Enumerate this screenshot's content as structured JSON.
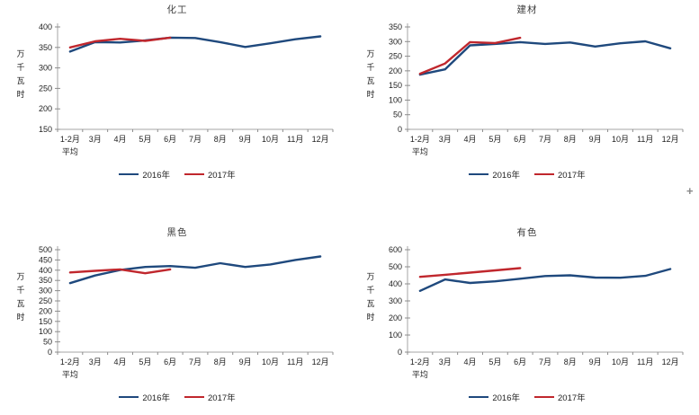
{
  "app": {
    "background": "#ffffff",
    "cursor_glyph": "+"
  },
  "styles": {
    "series_2016_color": "#1F497D",
    "series_2017_color": "#C0272D",
    "axis_color": "#a6a6a6",
    "tick_color": "#8c8c8c",
    "text_color": "#1f1f1f"
  },
  "chart_data": [
    {
      "type": "line",
      "title": "化工",
      "ylabel": "万千瓦时",
      "xlabel": "",
      "ylim": [
        150,
        400
      ],
      "ytick_step": 50,
      "grid": false,
      "legend_position": "bottom",
      "categories": [
        "1-2月\n平均",
        "3月",
        "4月",
        "5月",
        "6月",
        "7月",
        "8月",
        "9月",
        "10月",
        "11月",
        "12月"
      ],
      "series": [
        {
          "name": "2016年",
          "color": "#1F497D",
          "values": [
            340,
            363,
            362,
            367,
            374,
            373,
            363,
            351,
            360,
            370,
            377
          ]
        },
        {
          "name": "2017年",
          "color": "#C0272D",
          "values": [
            350,
            365,
            371,
            366,
            374
          ]
        }
      ]
    },
    {
      "type": "line",
      "title": "建材",
      "ylabel": "万千瓦时",
      "xlabel": "",
      "ylim": [
        0,
        350
      ],
      "ytick_step": 50,
      "grid": false,
      "legend_position": "bottom",
      "categories": [
        "1-2月\n平均",
        "3月",
        "4月",
        "5月",
        "6月",
        "7月",
        "8月",
        "9月",
        "10月",
        "11月",
        "12月"
      ],
      "series": [
        {
          "name": "2016年",
          "color": "#1F497D",
          "values": [
            187,
            205,
            287,
            292,
            298,
            292,
            297,
            283,
            294,
            301,
            277
          ]
        },
        {
          "name": "2017年",
          "color": "#C0272D",
          "values": [
            190,
            225,
            298,
            295,
            313
          ]
        }
      ]
    },
    {
      "type": "line",
      "title": "黑色",
      "ylabel": "万千瓦时",
      "xlabel": "",
      "ylim": [
        0,
        500
      ],
      "ytick_step": 50,
      "grid": false,
      "legend_position": "bottom",
      "categories": [
        "1-2月\n平均",
        "3月",
        "4月",
        "5月",
        "6月",
        "7月",
        "8月",
        "9月",
        "10月",
        "11月",
        "12月"
      ],
      "series": [
        {
          "name": "2016年",
          "color": "#1F497D",
          "values": [
            337,
            374,
            401,
            416,
            420,
            412,
            434,
            416,
            428,
            450,
            467
          ]
        },
        {
          "name": "2017年",
          "color": "#C0272D",
          "values": [
            389,
            397,
            404,
            385,
            404
          ]
        }
      ]
    },
    {
      "type": "line",
      "title": "有色",
      "ylabel": "万千瓦时",
      "xlabel": "",
      "ylim": [
        0,
        600
      ],
      "ytick_step": 100,
      "grid": false,
      "legend_position": "bottom",
      "categories": [
        "1-2月\n平均",
        "3月",
        "4月",
        "5月",
        "6月",
        "7月",
        "8月",
        "9月",
        "10月",
        "11月",
        "12月"
      ],
      "series": [
        {
          "name": "2016年",
          "color": "#1F497D",
          "values": [
            359,
            426,
            405,
            415,
            430,
            446,
            450,
            437,
            436,
            447,
            487
          ]
        },
        {
          "name": "2017年",
          "color": "#C0272D",
          "values": [
            441,
            453,
            466,
            479,
            492
          ]
        }
      ]
    }
  ]
}
